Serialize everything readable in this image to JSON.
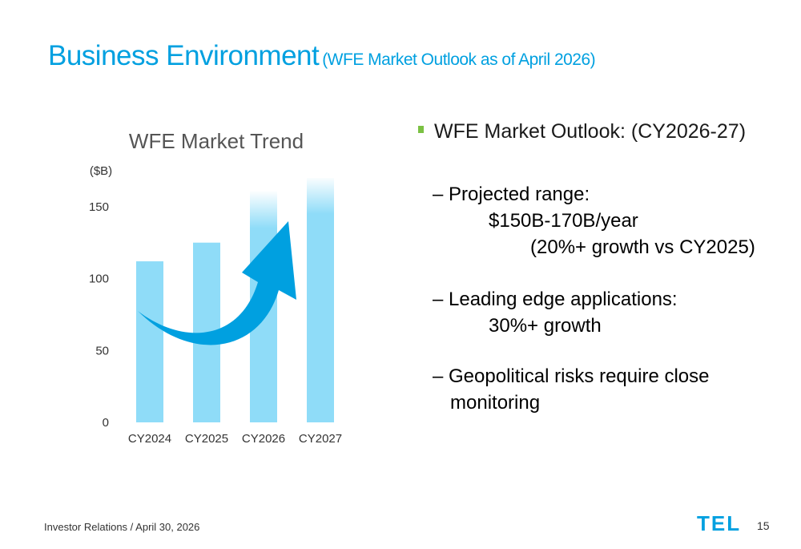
{
  "slide": {
    "title": "Business Environment",
    "subtitle": "(WFE Market Outlook as of April 2026)",
    "footer": "Investor Relations / April 30, 2026",
    "page": "15",
    "logo_text": "TEL",
    "brand_color": "#00a0e0",
    "accent_color": "#7bc143"
  },
  "chart_data": {
    "type": "bar",
    "title": "WFE Market Trend",
    "ylabel": "($B)",
    "categories": [
      "CY2024",
      "CY2025",
      "CY2026",
      "CY2027"
    ],
    "values": [
      112,
      125,
      160,
      170
    ],
    "ylim": [
      0,
      170
    ],
    "yticks": [
      "0",
      "50",
      "100",
      "150"
    ],
    "bar_color": "#8fdcf8",
    "arrow_color": "#00a0e0",
    "grid": false,
    "legend": "none"
  },
  "outlook": {
    "heading": "WFE Market Outlook: (CY2026-27)",
    "projected_label": "– Projected range:",
    "projected_value": "$150B-170B/year",
    "projected_growth": "(20%+ growth vs CY2025)",
    "leading_label": "– Leading edge applications:",
    "leading_value": "30%+ growth",
    "geo_line1": "– Geopolitical risks require close",
    "geo_line2": "monitoring"
  }
}
